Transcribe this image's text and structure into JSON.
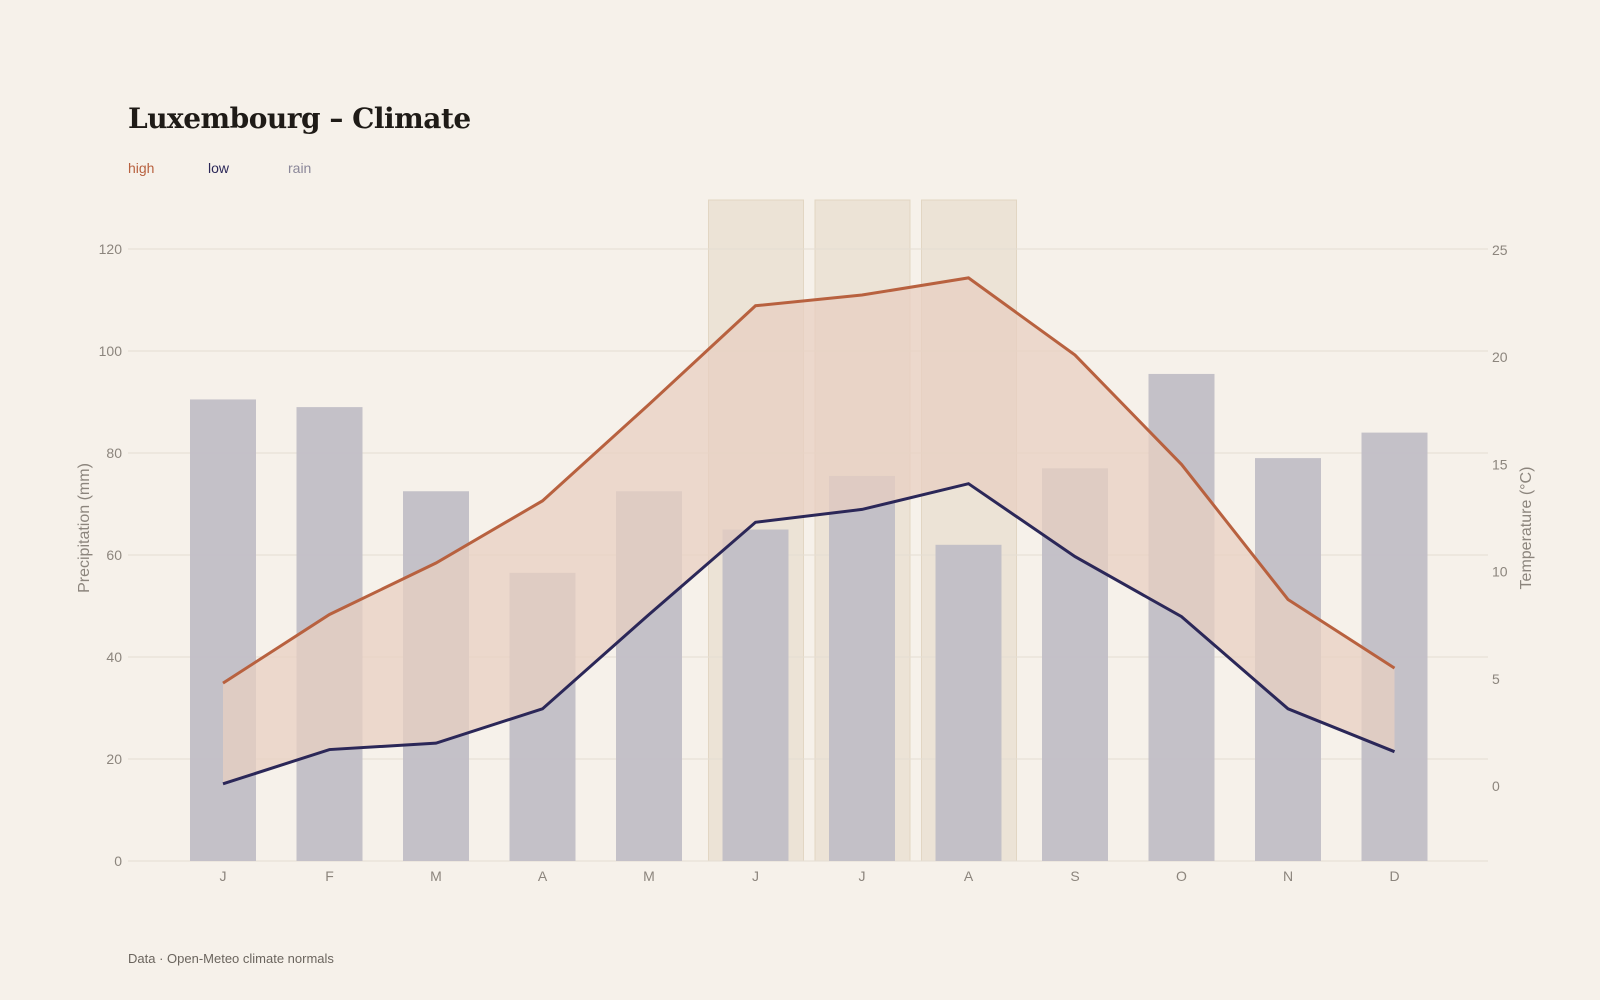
{
  "title": "Luxembourg – Climate",
  "legend": [
    {
      "label": "high",
      "color": "#b8613f"
    },
    {
      "label": "low",
      "color": "#2b2758"
    },
    {
      "label": "rain",
      "color": "#8b8799"
    }
  ],
  "footer": "Data · Open-Meteo climate normals",
  "colors": {
    "background": "#f6f1ea",
    "high": "#b8613f",
    "low": "#2b2758",
    "rain": "#c1bec6",
    "band_fill": "#e8cfc1",
    "summer_highlight": "#ece3d6",
    "grid": "#e4ddd3"
  },
  "chart_data": {
    "type": "bar+line",
    "categories": [
      "J",
      "F",
      "M",
      "A",
      "M",
      "J",
      "J",
      "A",
      "S",
      "O",
      "N",
      "D"
    ],
    "highlighted_categories": [
      5,
      6,
      7
    ],
    "series": [
      {
        "name": "rain",
        "type": "bar",
        "axis": "left",
        "values": [
          90.5,
          89,
          72.5,
          56.5,
          72.5,
          65,
          75.5,
          62,
          77,
          95.5,
          79,
          84
        ]
      },
      {
        "name": "high",
        "type": "line",
        "axis": "right",
        "values": [
          4.8,
          8,
          10.4,
          13.3,
          17.8,
          22.4,
          22.9,
          23.7,
          20.1,
          15,
          8.7,
          5.5
        ]
      },
      {
        "name": "low",
        "type": "line",
        "axis": "right",
        "values": [
          0.1,
          1.7,
          2,
          3.6,
          8,
          12.3,
          12.9,
          14.1,
          10.7,
          7.9,
          3.6,
          1.6
        ]
      }
    ],
    "left_axis": {
      "label": "Precipitation (mm)",
      "ticks": [
        0,
        20,
        40,
        60,
        80,
        100,
        120
      ],
      "range": [
        0,
        120
      ]
    },
    "right_axis": {
      "label": "Temperature (°C)",
      "ticks": [
        0,
        5,
        10,
        15,
        20,
        25
      ],
      "range": [
        -3.5,
        25
      ]
    },
    "grid": true,
    "legend_position": "top-left"
  }
}
